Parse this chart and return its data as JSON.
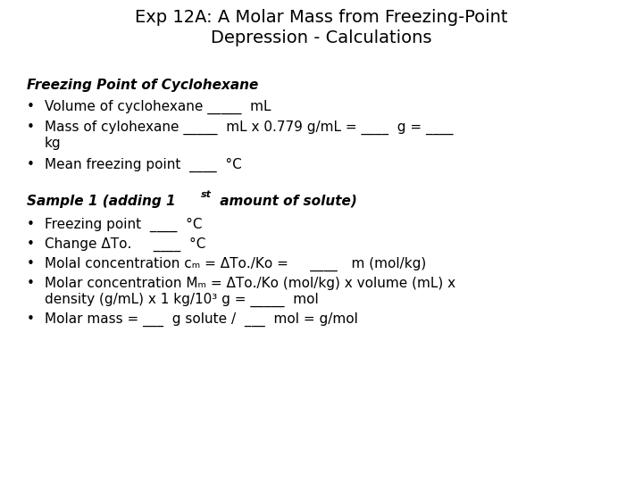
{
  "title": "Exp 12A: A Molar Mass from Freezing-Point\nDepression - Calculations",
  "title_fontsize": 14,
  "body_fontsize": 11,
  "background_color": "#ffffff",
  "text_color": "#000000"
}
